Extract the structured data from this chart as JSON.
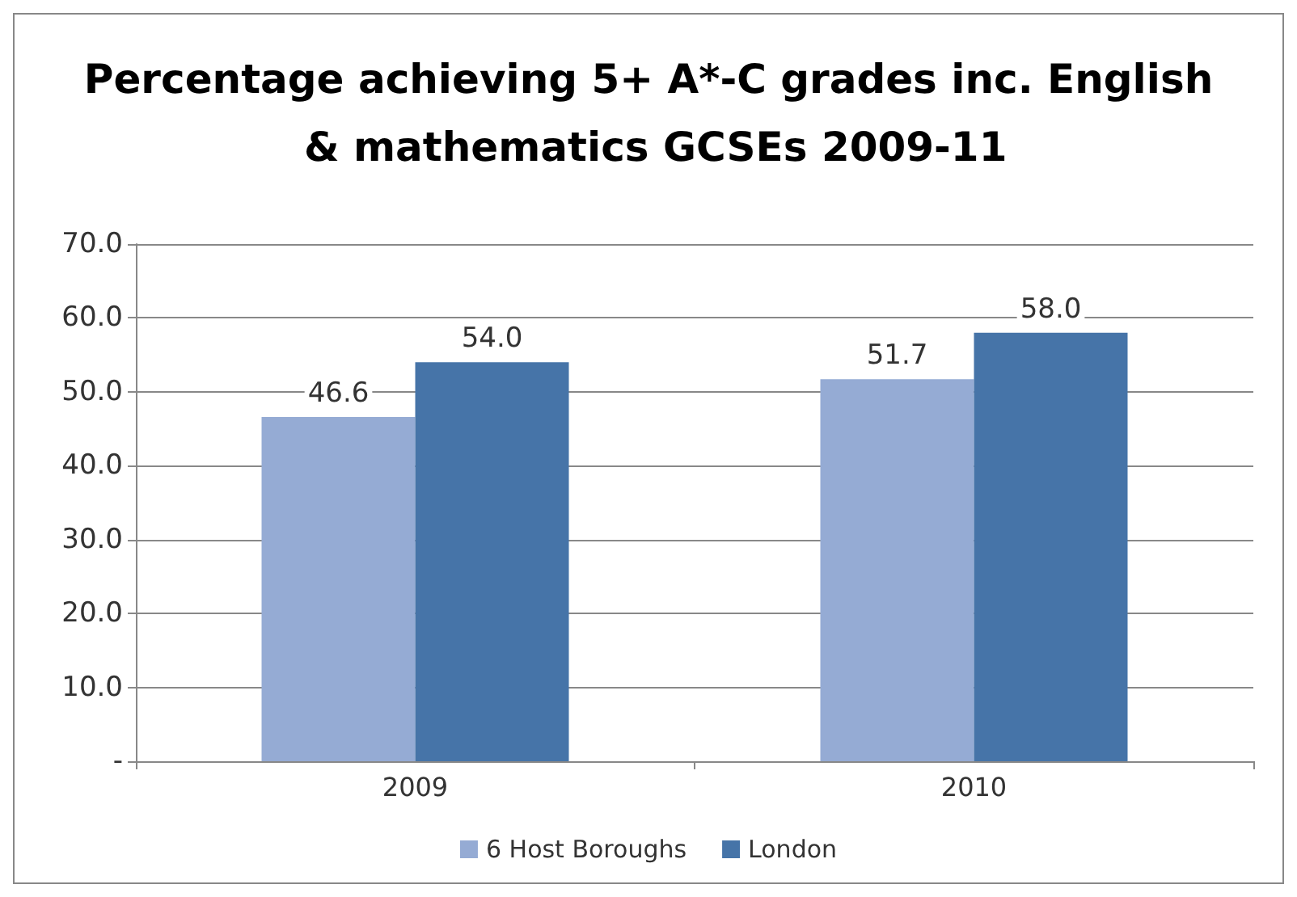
{
  "chart_data": {
    "type": "bar",
    "title": "Percentage achieving 5+ A*-C grades inc. English & mathematics GCSEs 2009-11",
    "categories": [
      "2009",
      "2010"
    ],
    "series": [
      {
        "name": "6 Host Boroughs",
        "color": "#95abd4",
        "values": [
          46.6,
          51.7
        ],
        "value_labels": [
          "46.6",
          "51.7"
        ]
      },
      {
        "name": "London",
        "color": "#4674a8",
        "values": [
          54.0,
          58.0
        ],
        "value_labels": [
          "54.0",
          "58.0"
        ]
      }
    ],
    "ylim": [
      0,
      70
    ],
    "yticks": [
      {
        "value": 0,
        "label": "-"
      },
      {
        "value": 10,
        "label": "10.0"
      },
      {
        "value": 20,
        "label": "20.0"
      },
      {
        "value": 30,
        "label": "30.0"
      },
      {
        "value": 40,
        "label": "40.0"
      },
      {
        "value": 50,
        "label": "50.0"
      },
      {
        "value": 60,
        "label": "60.0"
      },
      {
        "value": 70,
        "label": "70.0"
      }
    ],
    "grid": "y",
    "legend": "bottom"
  }
}
